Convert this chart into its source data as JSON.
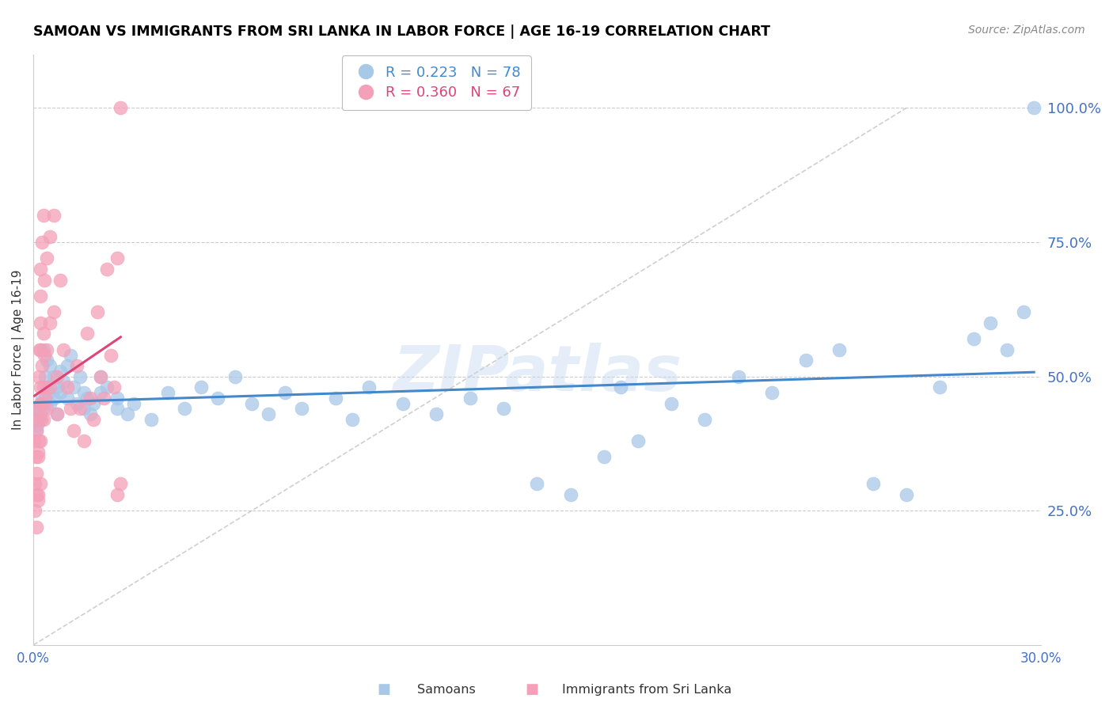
{
  "title": "SAMOAN VS IMMIGRANTS FROM SRI LANKA IN LABOR FORCE | AGE 16-19 CORRELATION CHART",
  "source": "Source: ZipAtlas.com",
  "ylabel": "In Labor Force | Age 16-19",
  "xlim": [
    0.0,
    0.3
  ],
  "ylim": [
    0.0,
    1.1
  ],
  "yticks": [
    0.25,
    0.5,
    0.75,
    1.0
  ],
  "ytick_labels": [
    "25.0%",
    "50.0%",
    "75.0%",
    "100.0%"
  ],
  "xticks": [
    0.0,
    0.05,
    0.1,
    0.15,
    0.2,
    0.25,
    0.3
  ],
  "xtick_labels": [
    "0.0%",
    "",
    "",
    "",
    "",
    "",
    "30.0%"
  ],
  "blue_R": 0.223,
  "blue_N": 78,
  "pink_R": 0.36,
  "pink_N": 67,
  "blue_color": "#a8c8e8",
  "pink_color": "#f4a0b8",
  "blue_line_color": "#4488cc",
  "pink_line_color": "#dd4477",
  "axis_color": "#4472c4",
  "legend_label_blue": "Samoans",
  "legend_label_pink": "Immigrants from Sri Lanka",
  "blue_scatter_x": [
    0.0005,
    0.0008,
    0.001,
    0.0012,
    0.0015,
    0.0018,
    0.002,
    0.0022,
    0.0025,
    0.003,
    0.003,
    0.0035,
    0.004,
    0.004,
    0.0045,
    0.005,
    0.005,
    0.006,
    0.006,
    0.007,
    0.007,
    0.008,
    0.008,
    0.009,
    0.01,
    0.01,
    0.011,
    0.012,
    0.013,
    0.014,
    0.015,
    0.015,
    0.016,
    0.017,
    0.018,
    0.02,
    0.02,
    0.022,
    0.025,
    0.025,
    0.028,
    0.03,
    0.035,
    0.04,
    0.045,
    0.05,
    0.055,
    0.06,
    0.065,
    0.07,
    0.075,
    0.08,
    0.09,
    0.095,
    0.1,
    0.11,
    0.12,
    0.13,
    0.14,
    0.15,
    0.16,
    0.17,
    0.175,
    0.18,
    0.19,
    0.2,
    0.21,
    0.22,
    0.23,
    0.24,
    0.25,
    0.26,
    0.27,
    0.28,
    0.285,
    0.29,
    0.295,
    0.298
  ],
  "blue_scatter_y": [
    0.42,
    0.4,
    0.43,
    0.41,
    0.44,
    0.42,
    0.45,
    0.43,
    0.46,
    0.44,
    0.55,
    0.5,
    0.48,
    0.53,
    0.47,
    0.45,
    0.52,
    0.46,
    0.5,
    0.48,
    0.43,
    0.47,
    0.51,
    0.49,
    0.46,
    0.52,
    0.54,
    0.48,
    0.45,
    0.5,
    0.44,
    0.47,
    0.46,
    0.43,
    0.45,
    0.47,
    0.5,
    0.48,
    0.46,
    0.44,
    0.43,
    0.45,
    0.42,
    0.47,
    0.44,
    0.48,
    0.46,
    0.5,
    0.45,
    0.43,
    0.47,
    0.44,
    0.46,
    0.42,
    0.48,
    0.45,
    0.43,
    0.46,
    0.44,
    0.3,
    0.28,
    0.35,
    0.48,
    0.38,
    0.45,
    0.42,
    0.5,
    0.47,
    0.53,
    0.55,
    0.3,
    0.28,
    0.48,
    0.57,
    0.6,
    0.55,
    0.62,
    1.0
  ],
  "pink_scatter_x": [
    0.0003,
    0.0005,
    0.0005,
    0.0007,
    0.0008,
    0.001,
    0.001,
    0.001,
    0.0012,
    0.0013,
    0.0013,
    0.0015,
    0.0015,
    0.0015,
    0.0017,
    0.0017,
    0.0018,
    0.002,
    0.002,
    0.002,
    0.002,
    0.002,
    0.002,
    0.0022,
    0.0022,
    0.0023,
    0.0025,
    0.0025,
    0.0027,
    0.003,
    0.003,
    0.003,
    0.003,
    0.0032,
    0.0033,
    0.0035,
    0.004,
    0.004,
    0.004,
    0.005,
    0.005,
    0.005,
    0.006,
    0.006,
    0.007,
    0.007,
    0.008,
    0.009,
    0.01,
    0.011,
    0.012,
    0.013,
    0.014,
    0.015,
    0.016,
    0.017,
    0.018,
    0.019,
    0.02,
    0.021,
    0.022,
    0.023,
    0.024,
    0.025,
    0.025,
    0.026,
    0.026
  ],
  "pink_scatter_y": [
    0.38,
    0.3,
    0.25,
    0.35,
    0.28,
    0.4,
    0.32,
    0.22,
    0.42,
    0.36,
    0.27,
    0.44,
    0.35,
    0.28,
    0.5,
    0.38,
    0.55,
    0.3,
    0.45,
    0.6,
    0.65,
    0.38,
    0.7,
    0.48,
    0.55,
    0.42,
    0.75,
    0.52,
    0.45,
    0.8,
    0.58,
    0.48,
    0.42,
    0.68,
    0.54,
    0.46,
    0.72,
    0.55,
    0.44,
    0.76,
    0.6,
    0.48,
    0.8,
    0.62,
    0.5,
    0.43,
    0.68,
    0.55,
    0.48,
    0.44,
    0.4,
    0.52,
    0.44,
    0.38,
    0.58,
    0.46,
    0.42,
    0.62,
    0.5,
    0.46,
    0.7,
    0.54,
    0.48,
    0.72,
    0.28,
    0.3,
    1.0
  ],
  "diag_line": [
    [
      0.0,
      0.0
    ],
    [
      0.26,
      1.0
    ]
  ],
  "watermark": "ZIPatlas",
  "background_color": "#ffffff",
  "grid_color": "#cccccc"
}
